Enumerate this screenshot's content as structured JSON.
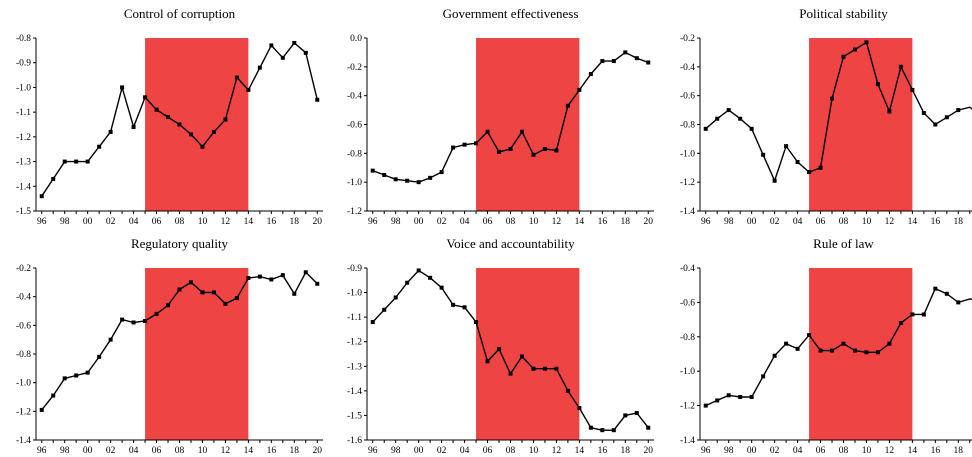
{
  "shade_color": "#ef4444",
  "line_color": "#000000",
  "x_tick_labels": [
    "96",
    "98",
    "00",
    "02",
    "04",
    "06",
    "08",
    "10",
    "12",
    "14",
    "16",
    "18",
    "20"
  ],
  "chart_data": [
    {
      "type": "line",
      "title": "Control of corruption",
      "shaded_region": [
        2005,
        2014
      ],
      "ylim": [
        -1.5,
        -0.8
      ],
      "yticks": [
        "-0.8",
        "-0.9",
        "-1.0",
        "-1.1",
        "-1.2",
        "-1.3",
        "-1.4",
        "-1.5"
      ],
      "x": [
        1996,
        1997,
        1998,
        1999,
        2000,
        2001,
        2002,
        2003,
        2004,
        2005,
        2006,
        2007,
        2008,
        2009,
        2010,
        2011,
        2012,
        2013,
        2014,
        2015,
        2016,
        2017,
        2018,
        2019,
        2020
      ],
      "values": [
        -1.44,
        -1.37,
        -1.3,
        -1.3,
        -1.3,
        -1.24,
        -1.18,
        -1.0,
        -1.16,
        -1.04,
        -1.09,
        -1.12,
        -1.15,
        -1.19,
        -1.24,
        -1.18,
        -1.13,
        -0.96,
        -1.01,
        -0.92,
        -0.83,
        -0.88,
        -0.82,
        -0.86,
        -1.05
      ]
    },
    {
      "type": "line",
      "title": "Government effectiveness",
      "shaded_region": [
        2005,
        2014
      ],
      "ylim": [
        -1.2,
        0.0
      ],
      "yticks": [
        "0.0",
        "-0.2",
        "-0.4",
        "-0.6",
        "-0.8",
        "-1.0",
        "-1.2"
      ],
      "x": [
        1996,
        1997,
        1998,
        1999,
        2000,
        2001,
        2002,
        2003,
        2004,
        2005,
        2006,
        2007,
        2008,
        2009,
        2010,
        2011,
        2012,
        2013,
        2014,
        2015,
        2016,
        2017,
        2018,
        2019,
        2020
      ],
      "values": [
        -0.92,
        -0.95,
        -0.98,
        -0.99,
        -1.0,
        -0.97,
        -0.93,
        -0.76,
        -0.74,
        -0.73,
        -0.65,
        -0.79,
        -0.77,
        -0.65,
        -0.81,
        -0.77,
        -0.78,
        -0.47,
        -0.36,
        -0.25,
        -0.16,
        -0.16,
        -0.1,
        -0.14,
        -0.17
      ]
    },
    {
      "type": "line",
      "title": "Political stability",
      "shaded_region": [
        2005,
        2014
      ],
      "ylim": [
        -1.4,
        -0.2
      ],
      "yticks": [
        "-0.2",
        "-0.4",
        "-0.6",
        "-0.8",
        "-1.0",
        "-1.2",
        "-1.4"
      ],
      "x": [
        1996,
        1997,
        1998,
        1999,
        2000,
        2001,
        2002,
        2003,
        2004,
        2005,
        2006,
        2007,
        2008,
        2009,
        2010,
        2011,
        2012,
        2013,
        2014,
        2015,
        2016,
        2017,
        2018,
        2019,
        2020
      ],
      "values": [
        -0.83,
        -0.76,
        -0.7,
        -0.76,
        -0.83,
        -1.01,
        -1.19,
        -0.95,
        -1.06,
        -1.13,
        -1.1,
        -0.62,
        -0.33,
        -0.28,
        -0.23,
        -0.52,
        -0.71,
        -0.4,
        -0.56,
        -0.72,
        -0.8,
        -0.75,
        -0.7,
        -0.68,
        -0.74
      ]
    },
    {
      "type": "line",
      "title": "Regulatory quality",
      "shaded_region": [
        2005,
        2014
      ],
      "ylim": [
        -1.4,
        -0.2
      ],
      "yticks": [
        "-0.2",
        "-0.4",
        "-0.6",
        "-0.8",
        "-1.0",
        "-1.2",
        "-1.4"
      ],
      "x": [
        1996,
        1997,
        1998,
        1999,
        2000,
        2001,
        2002,
        2003,
        2004,
        2005,
        2006,
        2007,
        2008,
        2009,
        2010,
        2011,
        2012,
        2013,
        2014,
        2015,
        2016,
        2017,
        2018,
        2019,
        2020
      ],
      "values": [
        -1.19,
        -1.09,
        -0.97,
        -0.95,
        -0.93,
        -0.82,
        -0.7,
        -0.56,
        -0.58,
        -0.57,
        -0.52,
        -0.46,
        -0.35,
        -0.3,
        -0.37,
        -0.37,
        -0.45,
        -0.41,
        -0.27,
        -0.26,
        -0.28,
        -0.25,
        -0.38,
        -0.23,
        -0.31
      ]
    },
    {
      "type": "line",
      "title": "Voice and accountability",
      "shaded_region": [
        2005,
        2014
      ],
      "ylim": [
        -1.6,
        -0.9
      ],
      "yticks": [
        "-0.9",
        "-1.0",
        "-1.1",
        "-1.2",
        "-1.3",
        "-1.4",
        "-1.5",
        "-1.6"
      ],
      "x": [
        1996,
        1997,
        1998,
        1999,
        2000,
        2001,
        2002,
        2003,
        2004,
        2005,
        2006,
        2007,
        2008,
        2009,
        2010,
        2011,
        2012,
        2013,
        2014,
        2015,
        2016,
        2017,
        2018,
        2019,
        2020
      ],
      "values": [
        -1.12,
        -1.07,
        -1.02,
        -0.96,
        -0.91,
        -0.94,
        -0.98,
        -1.05,
        -1.06,
        -1.12,
        -1.28,
        -1.23,
        -1.33,
        -1.26,
        -1.31,
        -1.31,
        -1.31,
        -1.4,
        -1.47,
        -1.55,
        -1.56,
        -1.56,
        -1.5,
        -1.49,
        -1.55
      ]
    },
    {
      "type": "line",
      "title": "Rule of law",
      "shaded_region": [
        2005,
        2014
      ],
      "ylim": [
        -1.4,
        -0.4
      ],
      "yticks": [
        "-0.4",
        "-0.6",
        "-0.8",
        "-1.0",
        "-1.2",
        "-1.4"
      ],
      "x": [
        1996,
        1997,
        1998,
        1999,
        2000,
        2001,
        2002,
        2003,
        2004,
        2005,
        2006,
        2007,
        2008,
        2009,
        2010,
        2011,
        2012,
        2013,
        2014,
        2015,
        2016,
        2017,
        2018,
        2019,
        2020
      ],
      "values": [
        -1.2,
        -1.17,
        -1.14,
        -1.15,
        -1.15,
        -1.03,
        -0.91,
        -0.84,
        -0.87,
        -0.79,
        -0.88,
        -0.88,
        -0.84,
        -0.88,
        -0.89,
        -0.89,
        -0.84,
        -0.72,
        -0.67,
        -0.67,
        -0.52,
        -0.55,
        -0.6,
        -0.58,
        -0.59
      ]
    }
  ]
}
